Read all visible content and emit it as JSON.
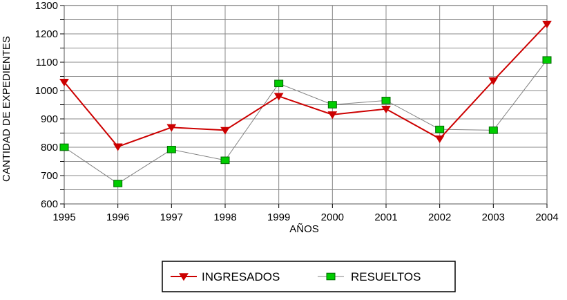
{
  "chart_data": {
    "type": "line",
    "title": "",
    "xlabel": "AÑOS",
    "ylabel": "CANTIDAD DE EXPEDIENTES",
    "categories": [
      "1995",
      "1996",
      "1997",
      "1998",
      "1999",
      "2000",
      "2001",
      "2002",
      "2003",
      "2004"
    ],
    "yticks": [
      "600",
      "700",
      "800",
      "900",
      "1000",
      "1100",
      "1200",
      "1300"
    ],
    "ylim": [
      600,
      1300
    ],
    "grid": true,
    "legend_position": "bottom",
    "series": [
      {
        "name": "INGRESADOS",
        "color": "#cc0000",
        "marker": "triangle-down",
        "values": [
          1030,
          802,
          870,
          860,
          980,
          915,
          935,
          830,
          1035,
          1235
        ]
      },
      {
        "name": "RESUELTOS",
        "color": "#00cc00",
        "marker": "square",
        "line_color": "#808080",
        "values": [
          800,
          672,
          792,
          754,
          1025,
          950,
          965,
          863,
          860,
          1108
        ]
      }
    ]
  }
}
